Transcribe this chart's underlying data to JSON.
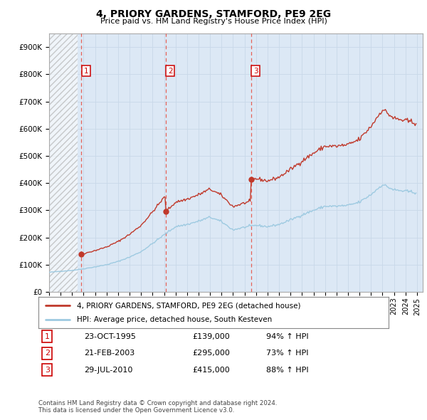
{
  "title": "4, PRIORY GARDENS, STAMFORD, PE9 2EG",
  "subtitle": "Price paid vs. HM Land Registry's House Price Index (HPI)",
  "legend_line1": "4, PRIORY GARDENS, STAMFORD, PE9 2EG (detached house)",
  "legend_line2": "HPI: Average price, detached house, South Kesteven",
  "footer1": "Contains HM Land Registry data © Crown copyright and database right 2024.",
  "footer2": "This data is licensed under the Open Government Licence v3.0.",
  "purchases": [
    {
      "num": 1,
      "date": "23-OCT-1995",
      "price": 139000,
      "pct": "94%",
      "dir": "↑",
      "year": 1995.81
    },
    {
      "num": 2,
      "date": "21-FEB-2003",
      "price": 295000,
      "pct": "73%",
      "dir": "↑",
      "year": 2003.13
    },
    {
      "num": 3,
      "date": "29-JUL-2010",
      "price": 415000,
      "pct": "88%",
      "dir": "↑",
      "year": 2010.57
    }
  ],
  "hpi_line_color": "#9ecae1",
  "price_line_color": "#c0392b",
  "purchase_dot_color": "#c0392b",
  "vline_color": "#e74c3c",
  "grid_color": "#c8d8e8",
  "background_color": "#dce8f5",
  "ylim": [
    0,
    950000
  ],
  "yticks": [
    0,
    100000,
    200000,
    300000,
    400000,
    500000,
    600000,
    700000,
    800000,
    900000
  ],
  "ytick_labels": [
    "£0",
    "£100K",
    "£200K",
    "£300K",
    "£400K",
    "£500K",
    "£600K",
    "£700K",
    "£800K",
    "£900K"
  ],
  "xlim_start": 1993.0,
  "xlim_end": 2025.5,
  "hatch_end": 1995.5,
  "purchase1_year": 1995.81,
  "purchase2_year": 2003.13,
  "purchase3_year": 2010.57,
  "purchase1_price": 139000,
  "purchase2_price": 295000,
  "purchase3_price": 415000
}
